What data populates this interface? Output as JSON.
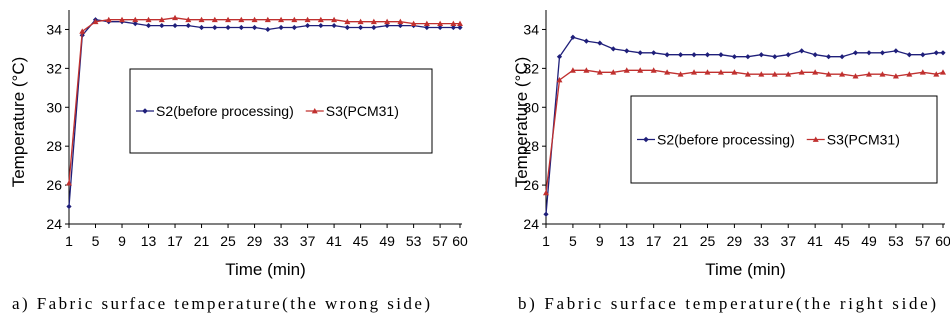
{
  "chart_data": [
    {
      "type": "line",
      "caption": "a) Fabric surface temperature(the wrong side)",
      "xlabel": "Time (min)",
      "ylabel": "Temperature (°C)",
      "ylim": [
        24,
        35
      ],
      "y_ticks": [
        "24",
        "26",
        "28",
        "30",
        "32",
        "34"
      ],
      "x_ticks": [
        "1",
        "5",
        "9",
        "13",
        "17",
        "21",
        "25",
        "29",
        "33",
        "37",
        "41",
        "45",
        "49",
        "53",
        "57",
        "60"
      ],
      "x_tick_values": [
        1,
        5,
        9,
        13,
        17,
        21,
        25,
        29,
        33,
        37,
        41,
        45,
        49,
        53,
        57,
        60
      ],
      "xlim": [
        1,
        60
      ],
      "legend_position": "center",
      "grid": false,
      "x": [
        1,
        3,
        5,
        7,
        9,
        11,
        13,
        15,
        17,
        19,
        21,
        23,
        25,
        27,
        29,
        31,
        33,
        35,
        37,
        39,
        41,
        43,
        45,
        47,
        49,
        51,
        53,
        55,
        57,
        59,
        60
      ],
      "series": [
        {
          "name": "S2(before processing)",
          "color": "#1f1f7a",
          "marker": "diamond",
          "values": [
            24.9,
            33.7,
            34.5,
            34.4,
            34.4,
            34.3,
            34.2,
            34.2,
            34.2,
            34.2,
            34.1,
            34.1,
            34.1,
            34.1,
            34.1,
            34.0,
            34.1,
            34.1,
            34.2,
            34.2,
            34.2,
            34.1,
            34.1,
            34.1,
            34.2,
            34.2,
            34.2,
            34.1,
            34.1,
            34.1,
            34.1
          ]
        },
        {
          "name": "S3(PCM31)",
          "color": "#c0302f",
          "marker": "triangle",
          "values": [
            26.1,
            33.9,
            34.4,
            34.5,
            34.5,
            34.5,
            34.5,
            34.5,
            34.6,
            34.5,
            34.5,
            34.5,
            34.5,
            34.5,
            34.5,
            34.5,
            34.5,
            34.5,
            34.5,
            34.5,
            34.5,
            34.4,
            34.4,
            34.4,
            34.4,
            34.4,
            34.3,
            34.3,
            34.3,
            34.3,
            34.3
          ]
        }
      ]
    },
    {
      "type": "line",
      "caption": "b) Fabric surface temperature(the right side)",
      "xlabel": "Time (min)",
      "ylabel": "Temperature (°C)",
      "ylim": [
        24,
        35
      ],
      "y_ticks": [
        "24",
        "26",
        "28",
        "30",
        "32",
        "34"
      ],
      "x_ticks": [
        "1",
        "5",
        "9",
        "13",
        "17",
        "21",
        "25",
        "29",
        "33",
        "37",
        "41",
        "45",
        "49",
        "53",
        "57",
        "60"
      ],
      "x_tick_values": [
        1,
        5,
        9,
        13,
        17,
        21,
        25,
        29,
        33,
        37,
        41,
        45,
        49,
        53,
        57,
        60
      ],
      "xlim": [
        1,
        60
      ],
      "legend_position": "center-right",
      "grid": false,
      "x": [
        1,
        3,
        5,
        7,
        9,
        11,
        13,
        15,
        17,
        19,
        21,
        23,
        25,
        27,
        29,
        31,
        33,
        35,
        37,
        39,
        41,
        43,
        45,
        47,
        49,
        51,
        53,
        55,
        57,
        59,
        60
      ],
      "series": [
        {
          "name": "S2(before processing)",
          "color": "#1f1f7a",
          "marker": "diamond",
          "values": [
            24.5,
            32.6,
            33.6,
            33.4,
            33.3,
            33.0,
            32.9,
            32.8,
            32.8,
            32.7,
            32.7,
            32.7,
            32.7,
            32.7,
            32.6,
            32.6,
            32.7,
            32.6,
            32.7,
            32.9,
            32.7,
            32.6,
            32.6,
            32.8,
            32.8,
            32.8,
            32.9,
            32.7,
            32.7,
            32.8,
            32.8
          ]
        },
        {
          "name": "S3(PCM31)",
          "color": "#c0302f",
          "marker": "triangle",
          "values": [
            25.6,
            31.4,
            31.9,
            31.9,
            31.8,
            31.8,
            31.9,
            31.9,
            31.9,
            31.8,
            31.7,
            31.8,
            31.8,
            31.8,
            31.8,
            31.7,
            31.7,
            31.7,
            31.7,
            31.8,
            31.8,
            31.7,
            31.7,
            31.6,
            31.7,
            31.7,
            31.6,
            31.7,
            31.8,
            31.7,
            31.8
          ]
        }
      ]
    }
  ]
}
